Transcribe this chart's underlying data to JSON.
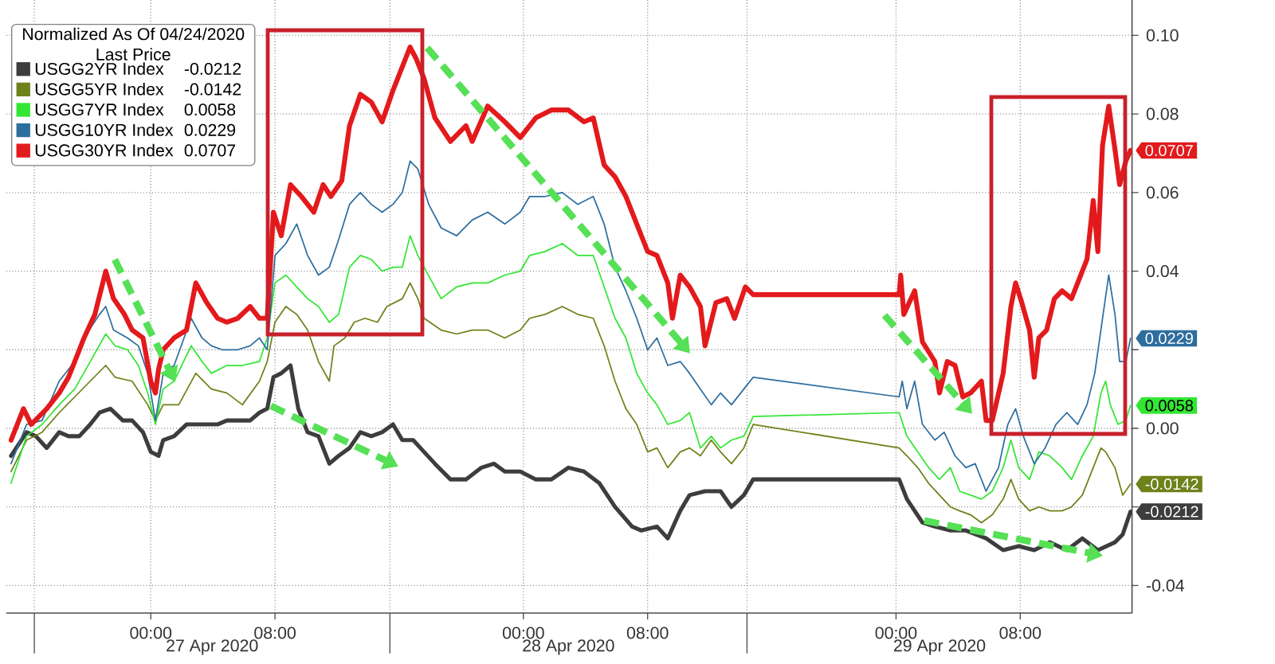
{
  "chart_data": {
    "type": "line",
    "legend_title": "Normalized As Of 04/24/2020 Last Price",
    "legend": "top left",
    "grid": true,
    "xlim": [
      "2020-04-26T14:42",
      "2020-04-29T15:12"
    ],
    "ylim": [
      -0.047,
      0.109
    ],
    "xticks": [
      {
        "value": "2020-04-26T16:30",
        "label": null
      },
      {
        "value": "2020-04-27T00:00",
        "label": "00:00"
      },
      {
        "value": "2020-04-27T08:00",
        "label": "08:00"
      },
      {
        "value": "2020-04-27T15:24",
        "label": null
      },
      {
        "value": "2020-04-28T00:00",
        "label": "00:00"
      },
      {
        "value": "2020-04-28T08:00",
        "label": "08:00"
      },
      {
        "value": "2020-04-28T14:24",
        "label": null
      },
      {
        "value": "2020-04-29T00:00",
        "label": "00:00"
      },
      {
        "value": "2020-04-29T08:00",
        "label": "08:00"
      }
    ],
    "yticks": [
      {
        "value": -0.04,
        "label": "-0.04"
      },
      {
        "value": -0.02,
        "label": null
      },
      {
        "value": 0,
        "label": "0.00"
      },
      {
        "value": 0.02,
        "label": null
      },
      {
        "value": 0.04,
        "label": "0.04"
      },
      {
        "value": 0.06,
        "label": "0.06"
      },
      {
        "value": 0.08,
        "label": "0.08"
      },
      {
        "value": 0.1,
        "label": "0.10"
      }
    ],
    "annotations": [
      "27 Apr 2020",
      "28 Apr 2020",
      "29 Apr 2020"
    ],
    "series": [
      {
        "name": "USGG2YR Index",
        "color": "#3d3d3d",
        "x": [
          "2020-04-26T15:00",
          "2020-04-26T16:00",
          "2020-04-26T16:36",
          "2020-04-26T17:18",
          "2020-04-26T18:06",
          "2020-04-26T18:42",
          "2020-04-26T19:24",
          "2020-04-26T20:06",
          "2020-04-26T20:42",
          "2020-04-26T21:24",
          "2020-04-26T22:12",
          "2020-04-26T22:48",
          "2020-04-26T23:30",
          "2020-04-27T00:00",
          "2020-04-27T00:30",
          "2020-04-27T00:48",
          "2020-04-27T01:30",
          "2020-04-27T02:18",
          "2020-04-27T02:54",
          "2020-04-27T03:36",
          "2020-04-27T04:18",
          "2020-04-27T04:54",
          "2020-04-27T05:36",
          "2020-04-27T06:24",
          "2020-04-27T07:00",
          "2020-04-27T07:30",
          "2020-04-27T07:54",
          "2020-04-27T08:24",
          "2020-04-27T09:00",
          "2020-04-27T09:30",
          "2020-04-27T10:06",
          "2020-04-27T10:48",
          "2020-04-27T11:30",
          "2020-04-27T12:06",
          "2020-04-27T12:48",
          "2020-04-27T13:30",
          "2020-04-27T14:12",
          "2020-04-27T14:54",
          "2020-04-27T15:36",
          "2020-04-27T16:12",
          "2020-04-27T16:54",
          "2020-04-27T17:36",
          "2020-04-27T18:18",
          "2020-04-27T19:18",
          "2020-04-27T20:18",
          "2020-04-27T21:18",
          "2020-04-27T22:06",
          "2020-04-27T22:48",
          "2020-04-27T23:48",
          "2020-04-28T00:48",
          "2020-04-28T01:48",
          "2020-04-28T02:54",
          "2020-04-28T03:54",
          "2020-04-28T04:54",
          "2020-04-28T05:54",
          "2020-04-28T07:00",
          "2020-04-28T07:36",
          "2020-04-28T08:36",
          "2020-04-28T09:18",
          "2020-04-28T10:06",
          "2020-04-28T10:42",
          "2020-04-28T11:42",
          "2020-04-28T12:42",
          "2020-04-28T13:24",
          "2020-04-28T14:12",
          "2020-04-28T14:48",
          "2020-04-29T00:12",
          "2020-04-29T00:42",
          "2020-04-29T01:12",
          "2020-04-29T01:42",
          "2020-04-29T02:30",
          "2020-04-29T03:30",
          "2020-04-29T04:30",
          "2020-04-29T05:48",
          "2020-04-29T06:54",
          "2020-04-29T07:54",
          "2020-04-29T08:54",
          "2020-04-29T09:54",
          "2020-04-29T11:00",
          "2020-04-29T12:00",
          "2020-04-29T13:00",
          "2020-04-29T14:06",
          "2020-04-29T14:36",
          "2020-04-29T15:06"
        ],
        "values": [
          -0.007,
          -0.001,
          -0.002,
          -0.005,
          -0.001,
          -0.002,
          -0.002,
          0.001,
          0.004,
          0.005,
          0.002,
          0.002,
          -0.001,
          -0.006,
          -0.007,
          -0.003,
          -0.002,
          0.001,
          0.001,
          0.001,
          0.001,
          0.002,
          0.002,
          0.002,
          0.004,
          0.005,
          0.013,
          0.014,
          0.016,
          0.005,
          -0.001,
          -0.002,
          -0.009,
          -0.007,
          -0.005,
          -0.001,
          -0.002,
          -0.001,
          0.001,
          -0.003,
          -0.003,
          -0.006,
          -0.009,
          -0.013,
          -0.013,
          -0.01,
          -0.009,
          -0.011,
          -0.011,
          -0.013,
          -0.013,
          -0.01,
          -0.011,
          -0.014,
          -0.02,
          -0.025,
          -0.026,
          -0.025,
          -0.028,
          -0.021,
          -0.017,
          -0.016,
          -0.016,
          -0.02,
          -0.017,
          -0.013,
          -0.013,
          -0.018,
          -0.021,
          -0.024,
          -0.025,
          -0.026,
          -0.026,
          -0.028,
          -0.031,
          -0.03,
          -0.031,
          -0.029,
          -0.031,
          -0.028,
          -0.031,
          -0.029,
          -0.027,
          -0.0212
        ],
        "value_labels": [
          null,
          null,
          null,
          null,
          null,
          null,
          null,
          null,
          null,
          null,
          null,
          null,
          null,
          null,
          null,
          null,
          null,
          null,
          null,
          null,
          null,
          null,
          null,
          null,
          null,
          null,
          null,
          null,
          null,
          null,
          null,
          null,
          null,
          null,
          null,
          null,
          null,
          null,
          null,
          null,
          null,
          null,
          null,
          null,
          null,
          null,
          null,
          null,
          null,
          null,
          null,
          null,
          null,
          null,
          null,
          null,
          null,
          null,
          null,
          null,
          null,
          null,
          null,
          null,
          null,
          null,
          null,
          null,
          null,
          null,
          null,
          null,
          null,
          null,
          null,
          null,
          null,
          null,
          null,
          null,
          null,
          null,
          null,
          "-0.0212"
        ]
      },
      {
        "name": "USGG5YR Index",
        "color": "#6e8219",
        "x": [
          "2020-04-26T15:00",
          "2020-04-26T16:00",
          "2020-04-26T17:00",
          "2020-04-26T18:06",
          "2020-04-26T19:06",
          "2020-04-26T20:06",
          "2020-04-26T21:06",
          "2020-04-26T21:42",
          "2020-04-26T22:48",
          "2020-04-26T23:48",
          "2020-04-27T00:18",
          "2020-04-27T00:48",
          "2020-04-27T01:48",
          "2020-04-27T02:54",
          "2020-04-27T03:54",
          "2020-04-27T04:54",
          "2020-04-27T05:54",
          "2020-04-27T07:00",
          "2020-04-27T07:30",
          "2020-04-27T08:00",
          "2020-04-27T08:42",
          "2020-04-27T09:24",
          "2020-04-27T10:06",
          "2020-04-27T10:48",
          "2020-04-27T11:30",
          "2020-04-27T11:48",
          "2020-04-27T12:30",
          "2020-04-27T13:06",
          "2020-04-27T13:48",
          "2020-04-27T14:36",
          "2020-04-27T15:12",
          "2020-04-27T16:12",
          "2020-04-27T16:42",
          "2020-04-27T17:12",
          "2020-04-27T17:36",
          "2020-04-27T18:42",
          "2020-04-27T19:42",
          "2020-04-27T20:42",
          "2020-04-27T21:42",
          "2020-04-27T22:48",
          "2020-04-27T23:48",
          "2020-04-28T00:24",
          "2020-04-28T01:24",
          "2020-04-28T02:30",
          "2020-04-28T03:30",
          "2020-04-28T04:30",
          "2020-04-28T05:12",
          "2020-04-28T05:54",
          "2020-04-28T06:36",
          "2020-04-28T07:18",
          "2020-04-28T08:00",
          "2020-04-28T08:36",
          "2020-04-28T09:18",
          "2020-04-28T10:06",
          "2020-04-28T10:42",
          "2020-04-28T11:24",
          "2020-04-28T12:06",
          "2020-04-28T12:42",
          "2020-04-28T13:24",
          "2020-04-28T14:12",
          "2020-04-28T14:48",
          "2020-04-29T00:12",
          "2020-04-29T00:42",
          "2020-04-29T01:24",
          "2020-04-29T02:06",
          "2020-04-29T02:48",
          "2020-04-29T03:30",
          "2020-04-29T04:06",
          "2020-04-29T04:48",
          "2020-04-29T05:30",
          "2020-04-29T06:12",
          "2020-04-29T06:54",
          "2020-04-29T07:24",
          "2020-04-29T07:54",
          "2020-04-29T08:36",
          "2020-04-29T09:12",
          "2020-04-29T09:54",
          "2020-04-29T10:42",
          "2020-04-29T11:18",
          "2020-04-29T12:00",
          "2020-04-29T12:42",
          "2020-04-29T13:12",
          "2020-04-29T13:30",
          "2020-04-29T14:06",
          "2020-04-29T14:36",
          "2020-04-29T15:06"
        ],
        "values": [
          -0.011,
          -0.003,
          -0.001,
          0.004,
          0.008,
          0.012,
          0.016,
          0.013,
          0.012,
          0.006,
          0.002,
          0.006,
          0.006,
          0.014,
          0.01,
          0.009,
          0.006,
          0.012,
          0.017,
          0.027,
          0.031,
          0.029,
          0.025,
          0.017,
          0.012,
          0.021,
          0.023,
          0.027,
          0.028,
          0.027,
          0.031,
          0.033,
          0.037,
          0.033,
          0.028,
          0.025,
          0.024,
          0.025,
          0.025,
          0.023,
          0.025,
          0.028,
          0.029,
          0.031,
          0.029,
          0.028,
          0.021,
          0.012,
          0.005,
          0.001,
          -0.006,
          -0.005,
          -0.01,
          -0.006,
          -0.005,
          -0.007,
          -0.003,
          -0.006,
          -0.009,
          -0.005,
          0.001,
          -0.005,
          -0.007,
          -0.01,
          -0.014,
          -0.017,
          -0.02,
          -0.021,
          -0.022,
          -0.024,
          -0.022,
          -0.018,
          -0.013,
          -0.018,
          -0.021,
          -0.02,
          -0.021,
          -0.021,
          -0.02,
          -0.017,
          -0.01,
          -0.005,
          -0.006,
          -0.01,
          -0.017,
          -0.0142
        ],
        "value_labels": [
          null,
          null,
          null,
          null,
          null,
          null,
          null,
          null,
          null,
          null,
          null,
          null,
          null,
          null,
          null,
          null,
          null,
          null,
          null,
          null,
          null,
          null,
          null,
          null,
          null,
          null,
          null,
          null,
          null,
          null,
          null,
          null,
          null,
          null,
          null,
          null,
          null,
          null,
          null,
          null,
          null,
          null,
          null,
          null,
          null,
          null,
          null,
          null,
          null,
          null,
          null,
          null,
          null,
          null,
          null,
          null,
          null,
          null,
          null,
          null,
          null,
          null,
          null,
          null,
          null,
          null,
          null,
          null,
          null,
          null,
          null,
          null,
          null,
          null,
          null,
          null,
          null,
          null,
          null,
          null,
          null,
          null,
          null,
          null,
          null,
          "-0.0142"
        ]
      },
      {
        "name": "USGG7YR Index",
        "color": "#33e633",
        "x": [
          "2020-04-26T15:00",
          "2020-04-26T16:00",
          "2020-04-26T17:00",
          "2020-04-26T18:06",
          "2020-04-26T19:06",
          "2020-04-26T20:06",
          "2020-04-26T21:06",
          "2020-04-26T21:42",
          "2020-04-26T22:30",
          "2020-04-26T23:12",
          "2020-04-26T23:48",
          "2020-04-27T00:18",
          "2020-04-27T00:48",
          "2020-04-27T01:30",
          "2020-04-27T02:36",
          "2020-04-27T03:18",
          "2020-04-27T03:54",
          "2020-04-27T04:54",
          "2020-04-27T05:54",
          "2020-04-27T07:00",
          "2020-04-27T07:30",
          "2020-04-27T08:00",
          "2020-04-27T08:42",
          "2020-04-27T09:24",
          "2020-04-27T10:06",
          "2020-04-27T10:48",
          "2020-04-27T11:30",
          "2020-04-27T12:06",
          "2020-04-27T12:48",
          "2020-04-27T13:30",
          "2020-04-27T14:12",
          "2020-04-27T14:54",
          "2020-04-27T15:36",
          "2020-04-27T16:12",
          "2020-04-27T16:42",
          "2020-04-27T17:12",
          "2020-04-27T17:36",
          "2020-04-27T18:42",
          "2020-04-27T19:42",
          "2020-04-27T20:42",
          "2020-04-27T21:42",
          "2020-04-27T22:48",
          "2020-04-27T23:48",
          "2020-04-28T00:24",
          "2020-04-28T01:24",
          "2020-04-28T02:30",
          "2020-04-28T03:30",
          "2020-04-28T04:30",
          "2020-04-28T05:12",
          "2020-04-28T05:54",
          "2020-04-28T06:36",
          "2020-04-28T07:18",
          "2020-04-28T08:00",
          "2020-04-28T08:36",
          "2020-04-28T09:18",
          "2020-04-28T10:06",
          "2020-04-28T10:42",
          "2020-04-28T11:24",
          "2020-04-28T12:06",
          "2020-04-28T12:42",
          "2020-04-28T13:24",
          "2020-04-28T14:12",
          "2020-04-28T14:48",
          "2020-04-29T00:12",
          "2020-04-29T00:42",
          "2020-04-29T01:24",
          "2020-04-29T02:06",
          "2020-04-29T02:48",
          "2020-04-29T03:30",
          "2020-04-29T04:06",
          "2020-04-29T04:48",
          "2020-04-29T05:30",
          "2020-04-29T06:12",
          "2020-04-29T06:54",
          "2020-04-29T07:24",
          "2020-04-29T07:54",
          "2020-04-29T08:36",
          "2020-04-29T09:12",
          "2020-04-29T09:54",
          "2020-04-29T10:42",
          "2020-04-29T11:18",
          "2020-04-29T12:00",
          "2020-04-29T12:42",
          "2020-04-29T13:12",
          "2020-04-29T13:30",
          "2020-04-29T13:48",
          "2020-04-29T14:18",
          "2020-04-29T14:48",
          "2020-04-29T15:06"
        ],
        "values": [
          -0.014,
          -0.002,
          0.001,
          0.006,
          0.01,
          0.017,
          0.024,
          0.021,
          0.02,
          0.016,
          0.009,
          0.001,
          0.01,
          0.012,
          0.021,
          0.017,
          0.014,
          0.016,
          0.016,
          0.017,
          0.023,
          0.037,
          0.039,
          0.036,
          0.033,
          0.031,
          0.027,
          0.029,
          0.041,
          0.044,
          0.043,
          0.04,
          0.041,
          0.041,
          0.049,
          0.044,
          0.041,
          0.033,
          0.036,
          0.037,
          0.037,
          0.039,
          0.04,
          0.044,
          0.045,
          0.047,
          0.044,
          0.044,
          0.036,
          0.028,
          0.023,
          0.014,
          0.009,
          0.006,
          0.001,
          0.002,
          0.004,
          -0.005,
          -0.002,
          -0.005,
          -0.003,
          -0.002,
          0.003,
          0.004,
          -0.002,
          -0.006,
          -0.01,
          -0.013,
          -0.01,
          -0.016,
          -0.017,
          -0.018,
          -0.016,
          -0.01,
          -0.003,
          -0.01,
          -0.013,
          -0.006,
          -0.007,
          -0.01,
          -0.013,
          -0.007,
          -0.002,
          0.009,
          0.012,
          0.006,
          0.001,
          0.002,
          0.0058
        ],
        "value_labels": [
          null,
          null,
          null,
          null,
          null,
          null,
          null,
          null,
          null,
          null,
          null,
          null,
          null,
          null,
          null,
          null,
          null,
          null,
          null,
          null,
          null,
          null,
          null,
          null,
          null,
          null,
          null,
          null,
          null,
          null,
          null,
          null,
          null,
          null,
          null,
          null,
          null,
          null,
          null,
          null,
          null,
          null,
          null,
          null,
          null,
          null,
          null,
          null,
          null,
          null,
          null,
          null,
          null,
          null,
          null,
          null,
          null,
          null,
          null,
          null,
          null,
          null,
          null,
          null,
          null,
          null,
          null,
          null,
          null,
          null,
          null,
          null,
          null,
          null,
          null,
          null,
          null,
          null,
          null,
          null,
          null,
          null,
          null,
          null,
          null,
          null,
          null,
          null,
          "0.0058"
        ]
      },
      {
        "name": "USGG10YR Index",
        "color": "#2e6e9e",
        "x": [
          "2020-04-26T15:00",
          "2020-04-26T16:00",
          "2020-04-26T17:00",
          "2020-04-26T18:06",
          "2020-04-26T19:06",
          "2020-04-26T19:42",
          "2020-04-26T20:42",
          "2020-04-26T21:06",
          "2020-04-26T21:36",
          "2020-04-26T22:30",
          "2020-04-26T23:12",
          "2020-04-26T23:48",
          "2020-04-27T00:18",
          "2020-04-27T00:48",
          "2020-04-27T01:30",
          "2020-04-27T02:36",
          "2020-04-27T03:18",
          "2020-04-27T03:54",
          "2020-04-27T04:36",
          "2020-04-27T05:36",
          "2020-04-27T06:24",
          "2020-04-27T07:00",
          "2020-04-27T07:30",
          "2020-04-27T08:00",
          "2020-04-27T08:42",
          "2020-04-27T09:24",
          "2020-04-27T10:06",
          "2020-04-27T10:48",
          "2020-04-27T11:30",
          "2020-04-27T12:06",
          "2020-04-27T12:48",
          "2020-04-27T13:30",
          "2020-04-27T14:12",
          "2020-04-27T14:54",
          "2020-04-27T15:36",
          "2020-04-27T16:12",
          "2020-04-27T16:42",
          "2020-04-27T17:12",
          "2020-04-27T17:54",
          "2020-04-27T18:42",
          "2020-04-27T19:42",
          "2020-04-27T20:42",
          "2020-04-27T21:42",
          "2020-04-27T22:48",
          "2020-04-27T23:48",
          "2020-04-28T00:24",
          "2020-04-28T01:24",
          "2020-04-28T02:30",
          "2020-04-28T03:30",
          "2020-04-28T04:30",
          "2020-04-28T05:12",
          "2020-04-28T05:54",
          "2020-04-28T06:36",
          "2020-04-28T07:18",
          "2020-04-28T08:00",
          "2020-04-28T08:36",
          "2020-04-28T09:18",
          "2020-04-28T10:06",
          "2020-04-28T10:42",
          "2020-04-28T11:24",
          "2020-04-28T12:06",
          "2020-04-28T12:42",
          "2020-04-28T13:24",
          "2020-04-28T14:12",
          "2020-04-28T14:48",
          "2020-04-29T00:12",
          "2020-04-29T00:24",
          "2020-04-29T00:42",
          "2020-04-29T01:12",
          "2020-04-29T01:42",
          "2020-04-29T02:30",
          "2020-04-29T03:06",
          "2020-04-29T03:48",
          "2020-04-29T04:30",
          "2020-04-29T05:06",
          "2020-04-29T05:48",
          "2020-04-29T06:36",
          "2020-04-29T07:12",
          "2020-04-29T07:42",
          "2020-04-29T08:12",
          "2020-04-29T08:54",
          "2020-04-29T09:36",
          "2020-04-29T10:18",
          "2020-04-29T11:00",
          "2020-04-29T11:42",
          "2020-04-29T12:18",
          "2020-04-29T12:48",
          "2020-04-29T13:18",
          "2020-04-29T13:42",
          "2020-04-29T14:06",
          "2020-04-29T14:24",
          "2020-04-29T14:48",
          "2020-04-29T15:06"
        ],
        "values": [
          -0.009,
          0.001,
          0.002,
          0.012,
          0.017,
          0.023,
          0.029,
          0.031,
          0.025,
          0.023,
          0.021,
          0.014,
          0.002,
          0.014,
          0.016,
          0.028,
          0.023,
          0.021,
          0.02,
          0.02,
          0.021,
          0.023,
          0.02,
          0.044,
          0.047,
          0.052,
          0.044,
          0.039,
          0.041,
          0.048,
          0.057,
          0.06,
          0.057,
          0.055,
          0.057,
          0.06,
          0.068,
          0.066,
          0.057,
          0.051,
          0.049,
          0.053,
          0.055,
          0.052,
          0.055,
          0.059,
          0.059,
          0.06,
          0.057,
          0.059,
          0.052,
          0.041,
          0.035,
          0.028,
          0.02,
          0.023,
          0.016,
          0.017,
          0.014,
          0.01,
          0.006,
          0.009,
          0.006,
          0.01,
          0.013,
          0.008,
          0.012,
          0.005,
          0.012,
          0.001,
          -0.003,
          -0.001,
          -0.007,
          -0.01,
          -0.009,
          -0.016,
          -0.01,
          0.001,
          0.005,
          -0.002,
          -0.009,
          -0.005,
          0.001,
          0.004,
          0.001,
          0.006,
          0.014,
          0.028,
          0.039,
          0.029,
          0.017,
          0.017,
          0.0229
        ],
        "value_labels": [
          null,
          null,
          null,
          null,
          null,
          null,
          null,
          null,
          null,
          null,
          null,
          null,
          null,
          null,
          null,
          null,
          null,
          null,
          null,
          null,
          null,
          null,
          null,
          null,
          null,
          null,
          null,
          null,
          null,
          null,
          null,
          null,
          null,
          null,
          null,
          null,
          null,
          null,
          null,
          null,
          null,
          null,
          null,
          null,
          null,
          null,
          null,
          null,
          null,
          null,
          null,
          null,
          null,
          null,
          null,
          null,
          null,
          null,
          null,
          null,
          null,
          null,
          null,
          null,
          null,
          null,
          null,
          null,
          null,
          null,
          null,
          null,
          null,
          null,
          null,
          null,
          null,
          null,
          null,
          null,
          null,
          null,
          null,
          null,
          null,
          null,
          null,
          null,
          null,
          null,
          null,
          null,
          "0.0229"
        ]
      },
      {
        "name": "USGG30YR Index",
        "color": "#e31a1c",
        "x": [
          "2020-04-26T15:00",
          "2020-04-26T15:48",
          "2020-04-26T16:18",
          "2020-04-26T17:18",
          "2020-04-26T18:06",
          "2020-04-26T18:42",
          "2020-04-26T19:24",
          "2020-04-26T19:42",
          "2020-04-26T20:24",
          "2020-04-26T21:06",
          "2020-04-26T21:36",
          "2020-04-26T22:18",
          "2020-04-26T22:48",
          "2020-04-26T23:30",
          "2020-04-27T00:00",
          "2020-04-27T00:18",
          "2020-04-27T00:30",
          "2020-04-27T00:48",
          "2020-04-27T01:30",
          "2020-04-27T02:18",
          "2020-04-27T02:54",
          "2020-04-27T03:36",
          "2020-04-27T04:18",
          "2020-04-27T04:54",
          "2020-04-27T05:36",
          "2020-04-27T06:24",
          "2020-04-27T07:00",
          "2020-04-27T07:30",
          "2020-04-27T07:54",
          "2020-04-27T08:24",
          "2020-04-27T09:00",
          "2020-04-27T09:42",
          "2020-04-27T10:30",
          "2020-04-27T11:06",
          "2020-04-27T11:36",
          "2020-04-27T12:18",
          "2020-04-27T12:48",
          "2020-04-27T13:30",
          "2020-04-27T14:12",
          "2020-04-27T14:54",
          "2020-04-27T15:36",
          "2020-04-27T16:12",
          "2020-04-27T16:42",
          "2020-04-27T17:06",
          "2020-04-27T17:36",
          "2020-04-27T18:18",
          "2020-04-27T19:18",
          "2020-04-27T20:18",
          "2020-04-27T20:42",
          "2020-04-27T21:42",
          "2020-04-27T22:48",
          "2020-04-27T23:48",
          "2020-04-28T00:48",
          "2020-04-28T01:48",
          "2020-04-28T02:54",
          "2020-04-28T03:54",
          "2020-04-28T04:30",
          "2020-04-28T05:12",
          "2020-04-28T05:54",
          "2020-04-28T06:36",
          "2020-04-28T07:18",
          "2020-04-28T08:00",
          "2020-04-28T08:36",
          "2020-04-28T09:18",
          "2020-04-28T09:36",
          "2020-04-28T10:06",
          "2020-04-28T10:42",
          "2020-04-28T11:24",
          "2020-04-28T11:42",
          "2020-04-28T12:24",
          "2020-04-28T13:06",
          "2020-04-28T13:36",
          "2020-04-28T14:18",
          "2020-04-28T14:48",
          "2020-04-29T00:12",
          "2020-04-29T00:18",
          "2020-04-29T00:30",
          "2020-04-29T01:12",
          "2020-04-29T01:42",
          "2020-04-29T02:30",
          "2020-04-29T02:48",
          "2020-04-29T03:18",
          "2020-04-29T03:48",
          "2020-04-29T04:18",
          "2020-04-29T04:48",
          "2020-04-29T05:30",
          "2020-04-29T05:48",
          "2020-04-29T06:12",
          "2020-04-29T06:54",
          "2020-04-29T07:24",
          "2020-04-29T07:42",
          "2020-04-29T08:06",
          "2020-04-29T08:36",
          "2020-04-29T08:54",
          "2020-04-29T09:12",
          "2020-04-29T09:42",
          "2020-04-29T10:12",
          "2020-04-29T10:42",
          "2020-04-29T11:18",
          "2020-04-29T11:42",
          "2020-04-29T12:18",
          "2020-04-29T12:42",
          "2020-04-29T13:00",
          "2020-04-29T13:18",
          "2020-04-29T13:42",
          "2020-04-29T14:06",
          "2020-04-29T14:24",
          "2020-04-29T14:48",
          "2020-04-29T15:06"
        ],
        "values": [
          -0.003,
          0.005,
          0.001,
          0.005,
          0.009,
          0.013,
          0.02,
          0.023,
          0.029,
          0.04,
          0.033,
          0.029,
          0.025,
          0.023,
          0.012,
          0.009,
          0.015,
          0.02,
          0.023,
          0.025,
          0.037,
          0.032,
          0.028,
          0.027,
          0.028,
          0.031,
          0.028,
          0.028,
          0.055,
          0.049,
          0.062,
          0.059,
          0.055,
          0.062,
          0.059,
          0.063,
          0.077,
          0.085,
          0.083,
          0.078,
          0.086,
          0.092,
          0.097,
          0.094,
          0.089,
          0.079,
          0.073,
          0.077,
          0.073,
          0.082,
          0.078,
          0.074,
          0.079,
          0.081,
          0.081,
          0.078,
          0.079,
          0.067,
          0.064,
          0.059,
          0.052,
          0.045,
          0.044,
          0.037,
          0.028,
          0.039,
          0.036,
          0.031,
          0.021,
          0.032,
          0.033,
          0.028,
          0.036,
          0.034,
          0.034,
          0.039,
          0.029,
          0.035,
          0.022,
          0.017,
          0.009,
          0.017,
          0.016,
          0.008,
          0.009,
          0.012,
          0.002,
          0.002,
          0.014,
          0.031,
          0.037,
          0.032,
          0.025,
          0.013,
          0.023,
          0.025,
          0.033,
          0.035,
          0.033,
          0.037,
          0.043,
          0.058,
          0.045,
          0.072,
          0.082,
          0.071,
          0.062,
          0.068,
          0.0707
        ],
        "value_labels": [
          null,
          null,
          null,
          null,
          null,
          null,
          null,
          null,
          null,
          null,
          null,
          null,
          null,
          null,
          null,
          null,
          null,
          null,
          null,
          null,
          null,
          null,
          null,
          null,
          null,
          null,
          null,
          null,
          null,
          null,
          null,
          null,
          null,
          null,
          null,
          null,
          null,
          null,
          null,
          null,
          null,
          null,
          null,
          null,
          null,
          null,
          null,
          null,
          null,
          null,
          null,
          null,
          null,
          null,
          null,
          null,
          null,
          null,
          null,
          null,
          null,
          null,
          null,
          null,
          null,
          null,
          null,
          null,
          null,
          null,
          null,
          null,
          null,
          null,
          null,
          null,
          null,
          null,
          null,
          null,
          null,
          null,
          null,
          null,
          null,
          null,
          null,
          null,
          null,
          null,
          null,
          null,
          null,
          null,
          null,
          null,
          null,
          null,
          null,
          null,
          null,
          null,
          null,
          null,
          null,
          null,
          null,
          null,
          "0.0707"
        ]
      }
    ]
  }
}
